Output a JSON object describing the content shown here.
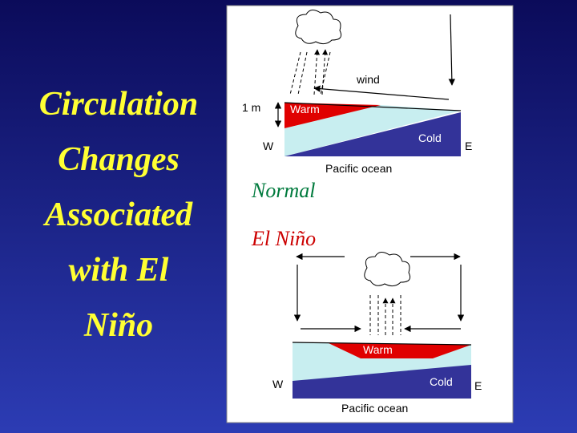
{
  "slide": {
    "title_lines": [
      "Circulation",
      "Changes",
      "Associated",
      "with El",
      "Niño"
    ],
    "normal": {
      "label": "Normal",
      "wind": "wind",
      "height": "1 m",
      "warm": "Warm",
      "cold": "Cold",
      "west": "W",
      "east": "E",
      "ocean": "Pacific ocean"
    },
    "el_nino": {
      "label": "El Niño",
      "warm": "Warm",
      "cold": "Cold",
      "west": "W",
      "east": "E",
      "ocean": "Pacific ocean"
    }
  }
}
